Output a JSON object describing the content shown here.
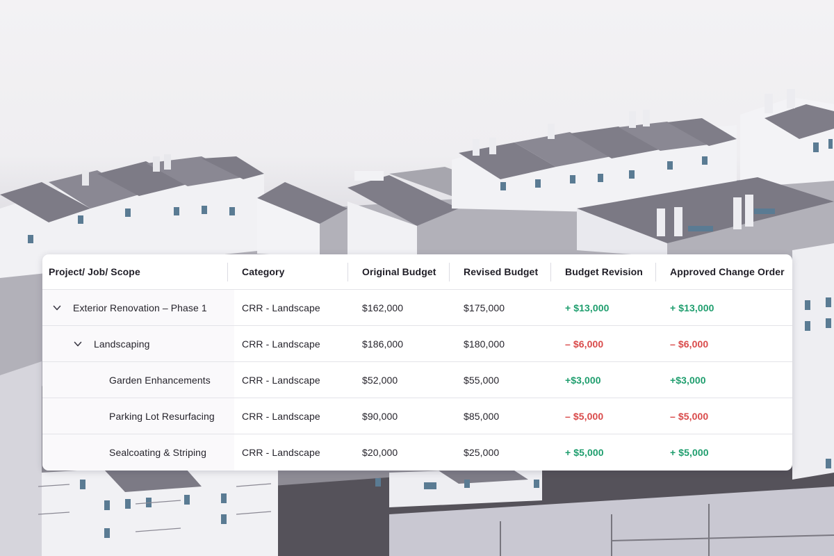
{
  "table": {
    "headers": {
      "scope": "Project/ Job/ Scope",
      "category": "Category",
      "original_budget": "Original Budget",
      "revised_budget": "Revised Budget",
      "budget_revision": "Budget Revision",
      "approved_change_order": "Approved Change Order"
    },
    "rows": [
      {
        "scope": "Exterior Renovation – Phase 1",
        "category": "CRR - Landscape",
        "original_budget": "$162,000",
        "revised_budget": "$175,000",
        "budget_revision": "+ $13,000",
        "approved_change_order": "+ $13,000"
      },
      {
        "scope": "Landscaping",
        "category": "CRR - Landscape",
        "original_budget": "$186,000",
        "revised_budget": "$180,000",
        "budget_revision": "– $6,000",
        "approved_change_order": "– $6,000"
      },
      {
        "scope": "Garden Enhancements",
        "category": "CRR - Landscape",
        "original_budget": "$52,000",
        "revised_budget": "$55,000",
        "budget_revision": "+$3,000",
        "approved_change_order": "+$3,000"
      },
      {
        "scope": "Parking Lot Resurfacing",
        "category": "CRR - Landscape",
        "original_budget": "$90,000",
        "revised_budget": "$85,000",
        "budget_revision": "– $5,000",
        "approved_change_order": "– $5,000"
      },
      {
        "scope": "Sealcoating & Striping",
        "category": "CRR - Landscape",
        "original_budget": "$20,000",
        "revised_budget": "$25,000",
        "budget_revision": "+ $5,000",
        "approved_change_order": "+ $5,000"
      }
    ]
  },
  "icons": {
    "expand": "chevron-down-icon"
  },
  "colors": {
    "positive": "#1f9e6e",
    "negative": "#d94a4a",
    "text": "#25232b"
  }
}
